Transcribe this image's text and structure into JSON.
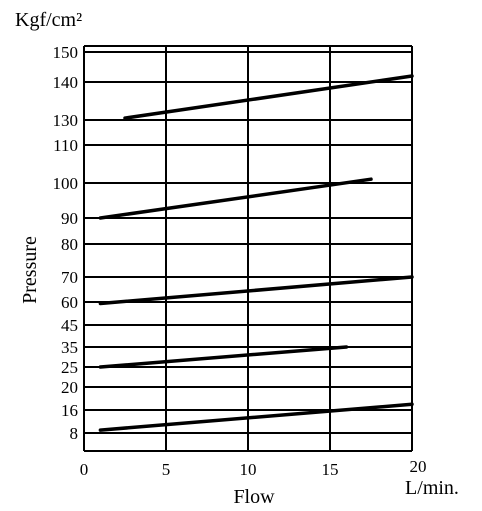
{
  "chart_data": {
    "type": "line",
    "title": "",
    "xlabel": "Flow",
    "ylabel": "Pressure",
    "x_unit": "L/min.",
    "y_unit": "Kgf/cm²",
    "xlim": [
      0,
      20
    ],
    "x_ticks": [
      "0",
      "5",
      "10",
      "15",
      "20"
    ],
    "y_ticks": [
      "8",
      "16",
      "20",
      "25",
      "35",
      "45",
      "60",
      "70",
      "80",
      "90",
      "100",
      "110",
      "130",
      "140",
      "150"
    ],
    "grid": true,
    "series": [
      {
        "x": [
          1.0,
          20.0
        ],
        "y": [
          9.0,
          17.0
        ]
      },
      {
        "x": [
          1.0,
          16.0
        ],
        "y": [
          25.0,
          35.0
        ]
      },
      {
        "x": [
          1.0,
          20.0
        ],
        "y": [
          59.0,
          70.0
        ]
      },
      {
        "x": [
          1.0,
          17.5
        ],
        "y": [
          90.0,
          101.0
        ]
      },
      {
        "x": [
          2.5,
          20.0
        ],
        "y": [
          130.5,
          142.0
        ]
      }
    ]
  }
}
